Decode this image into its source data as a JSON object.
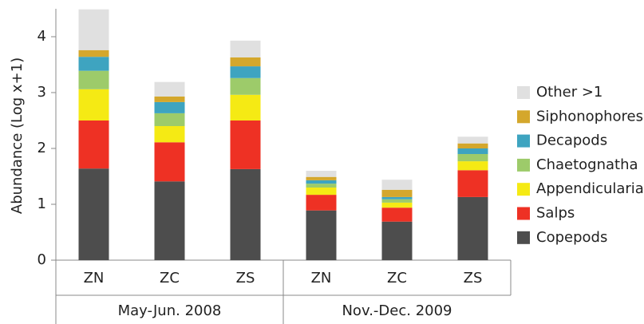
{
  "chart_data": {
    "type": "stacked-bar",
    "y_label": "Abundance (Log x+1)",
    "groups": [
      {
        "label": "May-Jun. 2008",
        "categories": [
          "ZN",
          "ZC",
          "ZS"
        ]
      },
      {
        "label": "Nov.-Dec. 2009",
        "categories": [
          "ZN",
          "ZC",
          "ZS"
        ]
      }
    ],
    "series": [
      {
        "name": "Copepods",
        "color": "#4d4d4d",
        "values": [
          1.64,
          1.41,
          1.63,
          0.89,
          0.69,
          1.13
        ]
      },
      {
        "name": "Salps",
        "color": "#ee3124",
        "values": [
          0.86,
          0.7,
          0.87,
          0.28,
          0.25,
          0.48
        ]
      },
      {
        "name": "Appendicularia",
        "color": "#f5ea14",
        "values": [
          0.56,
          0.29,
          0.46,
          0.13,
          0.09,
          0.16
        ]
      },
      {
        "name": "Chaetognatha",
        "color": "#9dcb6a",
        "values": [
          0.33,
          0.23,
          0.3,
          0.07,
          0.06,
          0.13
        ]
      },
      {
        "name": "Decapods",
        "color": "#3ea4c0",
        "values": [
          0.25,
          0.2,
          0.21,
          0.06,
          0.04,
          0.1
        ]
      },
      {
        "name": "Siphonophores",
        "color": "#d4a72c",
        "values": [
          0.12,
          0.1,
          0.16,
          0.06,
          0.13,
          0.09
        ]
      },
      {
        "name": "Other >1",
        "color": "#e0e0e0",
        "values": [
          0.73,
          0.26,
          0.3,
          0.11,
          0.18,
          0.12
        ]
      }
    ],
    "ylim": [
      0,
      4.5
    ],
    "yticks": [
      0,
      1,
      2,
      3,
      4
    ],
    "legend": "right"
  }
}
